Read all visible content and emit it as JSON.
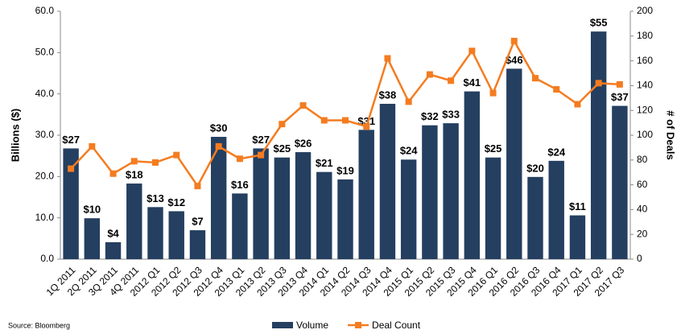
{
  "chart_data": {
    "type": "bar",
    "categories": [
      "1Q 2011",
      "2Q 2011",
      "3Q 2011",
      "4Q 2011",
      "2012 Q1",
      "2012 Q2",
      "2012 Q3",
      "2012 Q4",
      "2013 Q1",
      "2013 Q2",
      "2013 Q3",
      "2013 Q4",
      "2014 Q1",
      "2014 Q2",
      "2014 Q3",
      "2014 Q4",
      "2015 Q1",
      "2015 Q2",
      "2015 Q3",
      "2015 Q4",
      "2016 Q1",
      "2016 Q2",
      "2016 Q3",
      "2016 Q4",
      "2017 Q1",
      "2017 Q2",
      "2017 Q3"
    ],
    "series": [
      {
        "name": "Volume",
        "color": "#243f60",
        "type": "bar",
        "values": [
          26.8,
          9.9,
          4.1,
          18.3,
          12.6,
          11.6,
          7.0,
          29.6,
          15.9,
          26.8,
          24.6,
          25.9,
          21.1,
          19.3,
          31.3,
          37.6,
          24.1,
          32.4,
          32.9,
          40.6,
          24.6,
          46.1,
          19.9,
          23.8,
          10.6,
          55.1,
          37.1
        ],
        "value_labels": [
          "$27",
          "$10",
          "$4",
          "$18",
          "$13",
          "$12",
          "$7",
          "$30",
          "$16",
          "$27",
          "$25",
          "$26",
          "$21",
          "$19",
          "$31",
          "$38",
          "$24",
          "$32",
          "$33",
          "$41",
          "$25",
          "$46",
          "$20",
          "$24",
          "$11",
          "$55",
          "$37"
        ]
      },
      {
        "name": "Deal Count",
        "color": "#f47c20",
        "type": "line",
        "axis": "y2",
        "values": [
          73,
          91,
          69,
          79,
          78,
          84,
          59,
          91,
          81,
          84,
          109,
          124,
          112,
          112,
          107,
          162,
          127,
          149,
          144,
          168,
          134,
          176,
          146,
          137,
          125,
          142,
          141
        ]
      }
    ],
    "ylabel": "Billions ($)",
    "y2label": "# of Deals",
    "ylim": [
      0,
      60
    ],
    "yticks": [
      {
        "value": 0,
        "label": "0.0"
      },
      {
        "value": 10,
        "label": "10.0"
      },
      {
        "value": 20,
        "label": "20.0"
      },
      {
        "value": 30,
        "label": "30.0"
      },
      {
        "value": 40,
        "label": "40.0"
      },
      {
        "value": 50,
        "label": "50.0"
      },
      {
        "value": 60,
        "label": "60.0"
      }
    ],
    "y2lim": [
      0,
      200
    ],
    "y2ticks": [
      0,
      20,
      40,
      60,
      80,
      100,
      120,
      140,
      160,
      180,
      200
    ],
    "source": "Source: Bloomberg"
  }
}
